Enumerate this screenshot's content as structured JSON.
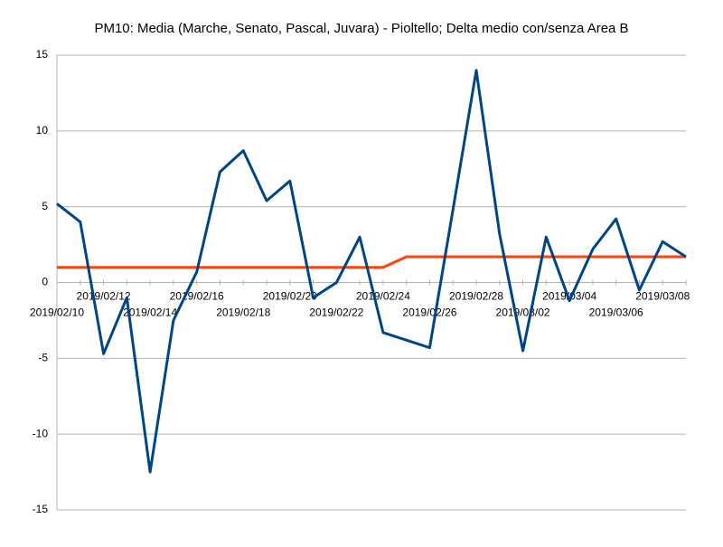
{
  "chart_data": {
    "type": "line",
    "title": "PM10: Media (Marche, Senato, Pascal, Juvara) - Pioltello; Delta medio con/senza Area B",
    "categories": [
      "2019/02/10",
      null,
      "2019/02/12",
      null,
      "2019/02/14",
      null,
      "2019/02/16",
      null,
      "2019/02/18",
      null,
      "2019/02/20",
      null,
      "2019/02/22",
      null,
      "2019/02/24",
      null,
      "2019/02/26",
      null,
      "2019/02/28",
      null,
      "2019/03/02",
      null,
      "2019/03/04",
      null,
      "2019/03/06",
      null,
      "2019/03/08",
      null
    ],
    "series": [
      {
        "color": "#004586",
        "values": [
          5.2,
          4.0,
          -4.7,
          -1.0,
          -12.5,
          -2.5,
          0.7,
          7.3,
          8.7,
          5.4,
          6.7,
          -1.0,
          0.0,
          3.0,
          -3.3,
          -3.8,
          -4.3,
          4.8,
          14.0,
          3.2,
          -4.5,
          3.0,
          -1.2,
          2.2,
          4.2,
          -0.5,
          2.7,
          1.7
        ]
      },
      {
        "color": "#ff420e",
        "values": [
          1.0,
          1.0,
          1.0,
          1.0,
          1.0,
          1.0,
          1.0,
          1.0,
          1.0,
          1.0,
          1.0,
          1.0,
          1.0,
          1.0,
          1.0,
          1.7,
          1.7,
          1.7,
          1.7,
          1.7,
          1.7,
          1.7,
          1.7,
          1.7,
          1.7,
          1.7,
          1.7,
          1.7
        ]
      }
    ],
    "ylim": [
      -15,
      15
    ],
    "yticks": [
      -15,
      -10,
      -5,
      0,
      5,
      10,
      15
    ],
    "grid": true
  }
}
